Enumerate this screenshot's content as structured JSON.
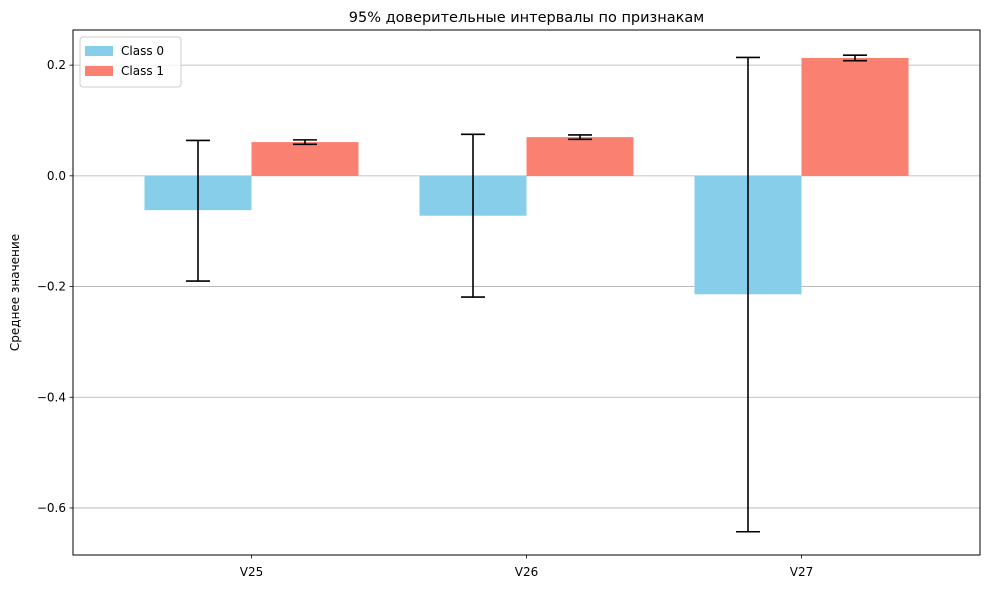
{
  "chart_data": {
    "type": "bar",
    "title": "95% доверительные интервалы по признакам",
    "xlabel": "",
    "ylabel": "Среднее значение",
    "categories": [
      "V25",
      "V26",
      "V27"
    ],
    "ylim": [
      -0.685,
      0.2635
    ],
    "yticks": [
      0.2,
      0.0,
      -0.2,
      -0.4,
      -0.6
    ],
    "ytick_labels": [
      "0.2",
      "0.0",
      "−0.2",
      "−0.4",
      "−0.6"
    ],
    "grid": "y",
    "legend_position": "top-left",
    "series": [
      {
        "name": "Class 0",
        "color": "#87ceeb",
        "values": [
          -0.062,
          -0.072,
          -0.214
        ],
        "ci_low": [
          -0.19,
          -0.219,
          -0.643
        ],
        "ci_high": [
          0.064,
          0.075,
          0.214
        ]
      },
      {
        "name": "Class 1",
        "color": "#fa8072",
        "values": [
          0.061,
          0.07,
          0.213
        ],
        "ci_low": [
          0.057,
          0.066,
          0.208
        ],
        "ci_high": [
          0.065,
          0.074,
          0.218
        ]
      }
    ]
  }
}
